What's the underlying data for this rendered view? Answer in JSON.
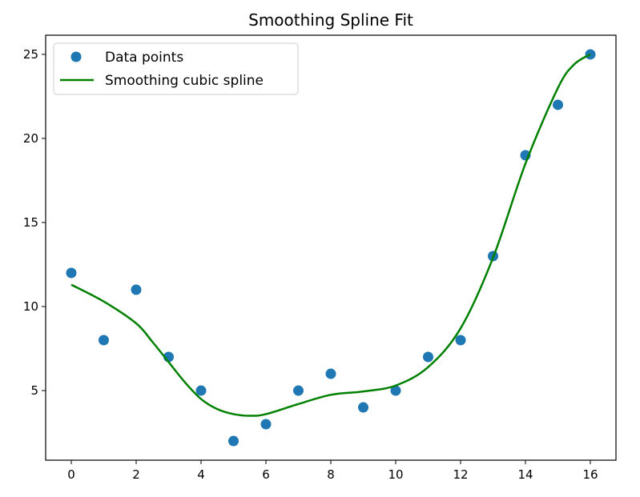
{
  "chart_data": {
    "type": "scatter",
    "title": "Smoothing Spline Fit",
    "xlabel": "",
    "ylabel": "",
    "xlim": [
      -0.79,
      16.79
    ],
    "ylim": [
      0.86,
      26.14
    ],
    "xticks": [
      0,
      2,
      4,
      6,
      8,
      10,
      12,
      14,
      16
    ],
    "yticks": [
      5,
      10,
      15,
      20,
      25
    ],
    "grid": false,
    "legend_position": "top-left",
    "series": [
      {
        "name": "Data points",
        "kind": "scatter",
        "color": "#1f77b4",
        "x": [
          0,
          1,
          2,
          3,
          4,
          5,
          6,
          7,
          8,
          9,
          10,
          11,
          12,
          13,
          14,
          15,
          16
        ],
        "y": [
          12,
          8,
          11,
          7,
          5,
          2,
          3,
          5,
          6,
          4,
          5,
          7,
          8,
          13,
          19,
          22,
          25
        ]
      },
      {
        "name": "Smoothing cubic spline",
        "kind": "line",
        "color": "#008000",
        "x": [
          0,
          1,
          2,
          2.5,
          3,
          3.5,
          4,
          4.5,
          5,
          5.5,
          6,
          7,
          8,
          9,
          10,
          11,
          12,
          13,
          14,
          15,
          15.5,
          16
        ],
        "y": [
          11.3,
          10.3,
          9.0,
          7.9,
          6.7,
          5.5,
          4.5,
          3.9,
          3.6,
          3.5,
          3.6,
          4.2,
          4.75,
          4.95,
          5.3,
          6.4,
          8.7,
          12.9,
          18.5,
          23.0,
          24.4,
          25.0
        ]
      }
    ]
  }
}
